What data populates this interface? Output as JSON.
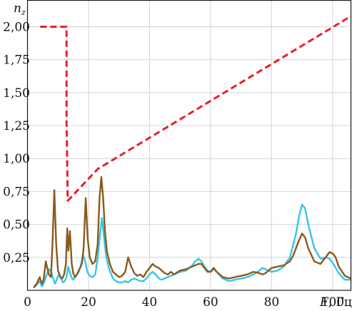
{
  "chart_data": {
    "type": "line",
    "title": "",
    "ylabel": "n",
    "ylabel_subscript": "z",
    "xlabel_var": "F",
    "xlabel_unit": ", Гц",
    "xlim": [
      0,
      106
    ],
    "ylim": [
      0,
      2.2
    ],
    "grid": true,
    "xticks": [
      0,
      20,
      40,
      60,
      80,
      100
    ],
    "xtick_labels": [
      "0",
      "20",
      "40",
      "60",
      "80",
      "100"
    ],
    "yticks": [
      0.25,
      0.5,
      0.75,
      1.0,
      1.25,
      1.5,
      1.75,
      2.0
    ],
    "ytick_labels": [
      "0,25",
      "0,50",
      "0,75",
      "1,00",
      "1,25",
      "1,50",
      "1,75",
      "2,00"
    ],
    "series": [
      {
        "color": "#e8202a",
        "style": "dashed",
        "x": [
          4.2,
          12.8,
          12.8,
          13.2,
          23,
          106
        ],
        "y": [
          2.0,
          2.0,
          1.28,
          0.68,
          0.92,
          2.08
        ]
      },
      {
        "color": "#35c6e6",
        "style": "solid",
        "x": [
          2,
          3,
          4,
          4.7,
          5.3,
          6,
          7,
          7.8,
          8.4,
          9,
          9.6,
          10.2,
          11,
          11.6,
          12.2,
          12.8,
          13.3,
          13.8,
          14.4,
          15,
          15.8,
          16.6,
          17.4,
          18.2,
          19,
          19.6,
          20.4,
          21.3,
          22.2,
          23,
          23.8,
          24.4,
          25,
          25.8,
          26.8,
          28,
          29,
          30,
          31,
          32,
          33,
          34,
          35,
          36,
          37,
          38,
          39,
          40,
          41,
          42,
          43,
          44,
          45,
          46,
          48,
          50,
          52,
          54,
          55,
          56,
          57,
          58,
          59,
          60,
          61,
          62,
          64,
          66,
          68,
          70,
          72,
          74,
          76,
          77,
          78,
          79,
          80,
          82,
          84,
          86,
          88,
          89,
          90,
          91,
          92,
          94,
          96,
          98,
          99,
          100,
          102,
          104,
          106
        ],
        "y": [
          0.02,
          0.04,
          0.07,
          0.03,
          0.05,
          0.1,
          0.16,
          0.14,
          0.09,
          0.05,
          0.08,
          0.12,
          0.09,
          0.06,
          0.07,
          0.1,
          0.18,
          0.14,
          0.1,
          0.08,
          0.11,
          0.13,
          0.18,
          0.27,
          0.21,
          0.14,
          0.11,
          0.1,
          0.12,
          0.24,
          0.43,
          0.55,
          0.42,
          0.25,
          0.16,
          0.09,
          0.07,
          0.06,
          0.06,
          0.07,
          0.06,
          0.08,
          0.09,
          0.08,
          0.07,
          0.07,
          0.09,
          0.12,
          0.14,
          0.12,
          0.09,
          0.08,
          0.09,
          0.1,
          0.12,
          0.14,
          0.15,
          0.19,
          0.22,
          0.24,
          0.22,
          0.18,
          0.15,
          0.14,
          0.16,
          0.14,
          0.09,
          0.07,
          0.08,
          0.09,
          0.1,
          0.12,
          0.15,
          0.17,
          0.16,
          0.15,
          0.14,
          0.15,
          0.18,
          0.25,
          0.43,
          0.56,
          0.65,
          0.62,
          0.5,
          0.32,
          0.24,
          0.25,
          0.24,
          0.21,
          0.13,
          0.08,
          0.08
        ]
      },
      {
        "color": "#8b5a1b",
        "style": "solid",
        "x": [
          2,
          3,
          4,
          4.7,
          5.3,
          6,
          7,
          7.7,
          8.2,
          8.8,
          9.4,
          10,
          10.8,
          11.4,
          12,
          12.6,
          13,
          13.4,
          13.9,
          14.5,
          15,
          15.6,
          16.2,
          17,
          17.8,
          18.4,
          19.1,
          19.7,
          20.4,
          21.3,
          22.2,
          23,
          23.6,
          24.2,
          24.8,
          25.4,
          26,
          27,
          28,
          29,
          30,
          31,
          32,
          33,
          34,
          35,
          36,
          37,
          38,
          39,
          40,
          41,
          42,
          43,
          44,
          45,
          46,
          47,
          48,
          50,
          52,
          54,
          55,
          56,
          57,
          58,
          59,
          60,
          61,
          62,
          64,
          66,
          68,
          70,
          72,
          74,
          76,
          77,
          78,
          80,
          82,
          84,
          86,
          87,
          88,
          89,
          90,
          91,
          92,
          94,
          96,
          98,
          99,
          100,
          101,
          102,
          104,
          106
        ],
        "y": [
          0.02,
          0.05,
          0.1,
          0.05,
          0.08,
          0.22,
          0.12,
          0.1,
          0.35,
          0.76,
          0.35,
          0.15,
          0.1,
          0.09,
          0.12,
          0.2,
          0.47,
          0.3,
          0.45,
          0.2,
          0.13,
          0.1,
          0.12,
          0.16,
          0.2,
          0.32,
          0.7,
          0.4,
          0.25,
          0.2,
          0.22,
          0.35,
          0.7,
          0.86,
          0.7,
          0.45,
          0.3,
          0.2,
          0.14,
          0.12,
          0.1,
          0.11,
          0.14,
          0.25,
          0.18,
          0.13,
          0.11,
          0.12,
          0.1,
          0.14,
          0.17,
          0.2,
          0.18,
          0.17,
          0.15,
          0.13,
          0.12,
          0.14,
          0.12,
          0.15,
          0.16,
          0.18,
          0.19,
          0.2,
          0.2,
          0.17,
          0.14,
          0.14,
          0.17,
          0.14,
          0.1,
          0.09,
          0.1,
          0.11,
          0.12,
          0.14,
          0.13,
          0.12,
          0.13,
          0.17,
          0.18,
          0.19,
          0.22,
          0.26,
          0.32,
          0.38,
          0.43,
          0.4,
          0.32,
          0.22,
          0.2,
          0.26,
          0.29,
          0.28,
          0.25,
          0.18,
          0.11,
          0.09
        ]
      }
    ]
  }
}
